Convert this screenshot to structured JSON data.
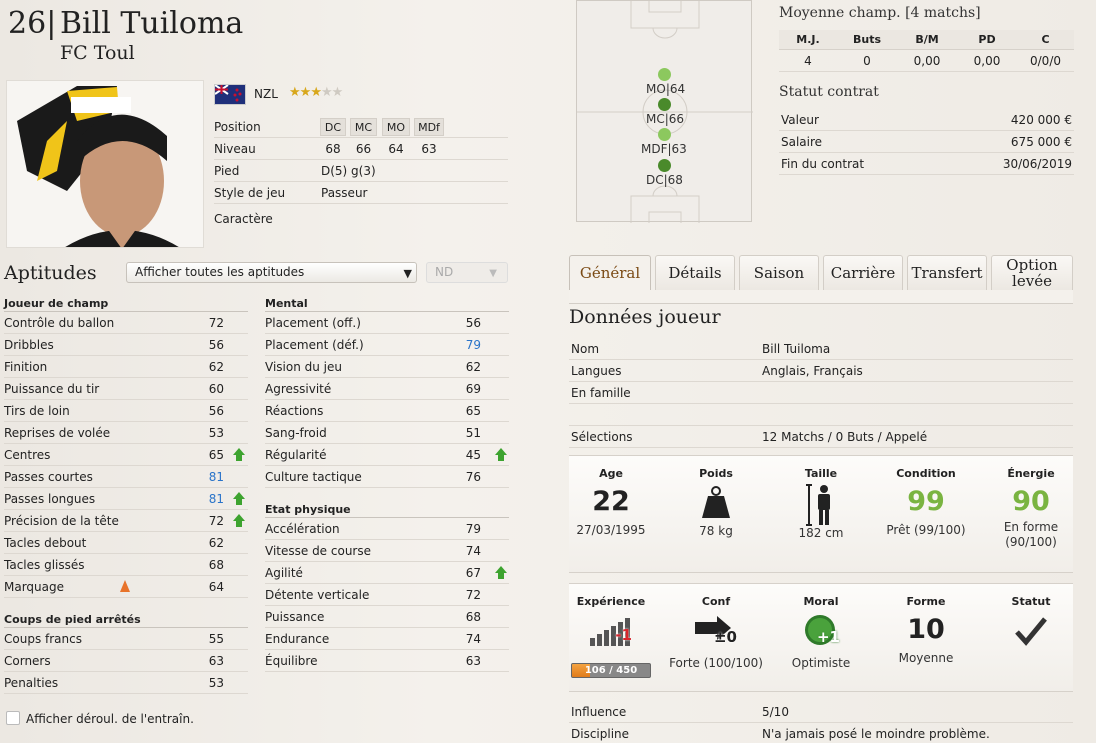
{
  "player": {
    "number": "26",
    "sep": "|",
    "name": "Bill Tuiloma",
    "club": "FC Toul",
    "nationality": "NZL",
    "stars": 3,
    "stars_max": 5
  },
  "info": {
    "position_label": "Position",
    "positions": [
      "DC",
      "MC",
      "MO",
      "MDf"
    ],
    "level_label": "Niveau",
    "levels": [
      "68",
      "66",
      "64",
      "63"
    ],
    "foot_label": "Pied",
    "foot": "D(5) g(3)",
    "style_label": "Style de jeu",
    "style": "Passeur",
    "character_label": "Caractère"
  },
  "aptitudes": {
    "title": "Aptitudes",
    "filter": "Afficher toutes les aptitudes",
    "filter2": "ND"
  },
  "outfield": {
    "title": "Joueur de champ",
    "items": [
      {
        "name": "Contrôle du ballon",
        "value": "72"
      },
      {
        "name": "Dribbles",
        "value": "56"
      },
      {
        "name": "Finition",
        "value": "62"
      },
      {
        "name": "Puissance du tir",
        "value": "60"
      },
      {
        "name": "Tirs de loin",
        "value": "56"
      },
      {
        "name": "Reprises de volée",
        "value": "53"
      },
      {
        "name": "Centres",
        "value": "65"
      },
      {
        "name": "Passes courtes",
        "value": "81"
      },
      {
        "name": "Passes longues",
        "value": "81"
      },
      {
        "name": "Précision de la tête",
        "value": "72"
      },
      {
        "name": "Tacles debout",
        "value": "62"
      },
      {
        "name": "Tacles glissés",
        "value": "68"
      },
      {
        "name": "Marquage",
        "value": "64"
      }
    ]
  },
  "setpieces": {
    "title": "Coups de pied arrêtés",
    "items": [
      {
        "name": "Coups francs",
        "value": "55"
      },
      {
        "name": "Corners",
        "value": "63"
      },
      {
        "name": "Penalties",
        "value": "53"
      }
    ]
  },
  "mental": {
    "title": "Mental",
    "items": [
      {
        "name": "Placement (off.)",
        "value": "56"
      },
      {
        "name": "Placement (déf.)",
        "value": "79"
      },
      {
        "name": "Vision du jeu",
        "value": "62"
      },
      {
        "name": "Agressivité",
        "value": "69"
      },
      {
        "name": "Réactions",
        "value": "65"
      },
      {
        "name": "Sang-froid",
        "value": "51"
      },
      {
        "name": "Régularité",
        "value": "45"
      },
      {
        "name": "Culture tactique",
        "value": "76"
      }
    ]
  },
  "physical": {
    "title": "Etat physique",
    "items": [
      {
        "name": "Accélération",
        "value": "79"
      },
      {
        "name": "Vitesse de course",
        "value": "74"
      },
      {
        "name": "Agilité",
        "value": "67"
      },
      {
        "name": "Détente verticale",
        "value": "72"
      },
      {
        "name": "Puissance",
        "value": "68"
      },
      {
        "name": "Endurance",
        "value": "74"
      },
      {
        "name": "Équilibre",
        "value": "63"
      }
    ]
  },
  "training_checkbox": "Afficher déroul. de l'entraîn.",
  "pitch": {
    "labels": [
      "MO",
      "64",
      "MC",
      "66",
      "MDF",
      "63",
      "DC",
      "68"
    ]
  },
  "avg": {
    "title": "Moyenne champ. [4 matchs]",
    "headers": [
      "M.J.",
      "Buts",
      "B/M",
      "PD",
      "C"
    ],
    "values": [
      "4",
      "0",
      "0,00",
      "0,00",
      "0/0/0"
    ]
  },
  "contract": {
    "title": "Statut contrat",
    "rows": [
      {
        "label": "Valeur",
        "value": "420 000 €"
      },
      {
        "label": "Salaire",
        "value": "675 000 €"
      },
      {
        "label": "Fin du contrat",
        "value": "30/06/2019"
      }
    ]
  },
  "tabs": [
    "Général",
    "Détails",
    "Saison",
    "Carrière",
    "Transfert",
    "Option",
    "levée"
  ],
  "data": {
    "title": "Données joueur",
    "rows": [
      {
        "label": "Nom",
        "value": "Bill Tuiloma"
      },
      {
        "label": "Langues",
        "value": "Anglais, Français"
      },
      {
        "label": "En famille",
        "value": ""
      },
      {
        "label": "",
        "value": ""
      },
      {
        "label": "Sélections",
        "value": "12 Matchs / 0 Buts / Appelé"
      }
    ]
  },
  "stats1": {
    "age_label": "Age",
    "age": "22",
    "dob": "27/03/1995",
    "weight_label": "Poids",
    "weight": "78 kg",
    "height_label": "Taille",
    "height": "182 cm",
    "condition_label": "Condition",
    "condition": "99",
    "condition_txt": "Prêt (99/100)",
    "energy_label": "Énergie",
    "energy": "90",
    "energy_txt1": "En forme",
    "energy_txt2": "(90/100)"
  },
  "stats2": {
    "xp_label": "Expérience",
    "xp_delta": "-1",
    "xp_bar": "106 / 450",
    "xp_fraction": 0.2356,
    "conf_label": "Conf",
    "conf_delta": "±0",
    "conf_txt": "Forte (100/100)",
    "moral_label": "Moral",
    "moral_delta": "+1",
    "moral_txt": "Optimiste",
    "form_label": "Forme",
    "form": "10",
    "form_txt": "Moyenne",
    "status_label": "Statut"
  },
  "bottom": [
    {
      "label": "Influence",
      "value": "5/10"
    },
    {
      "label": "Discipline",
      "value": "N'a jamais posé le moindre problème."
    }
  ],
  "colors": {
    "green": "#7ab441",
    "blue": "#2a74c9",
    "tab_active": "#7b4b15"
  }
}
